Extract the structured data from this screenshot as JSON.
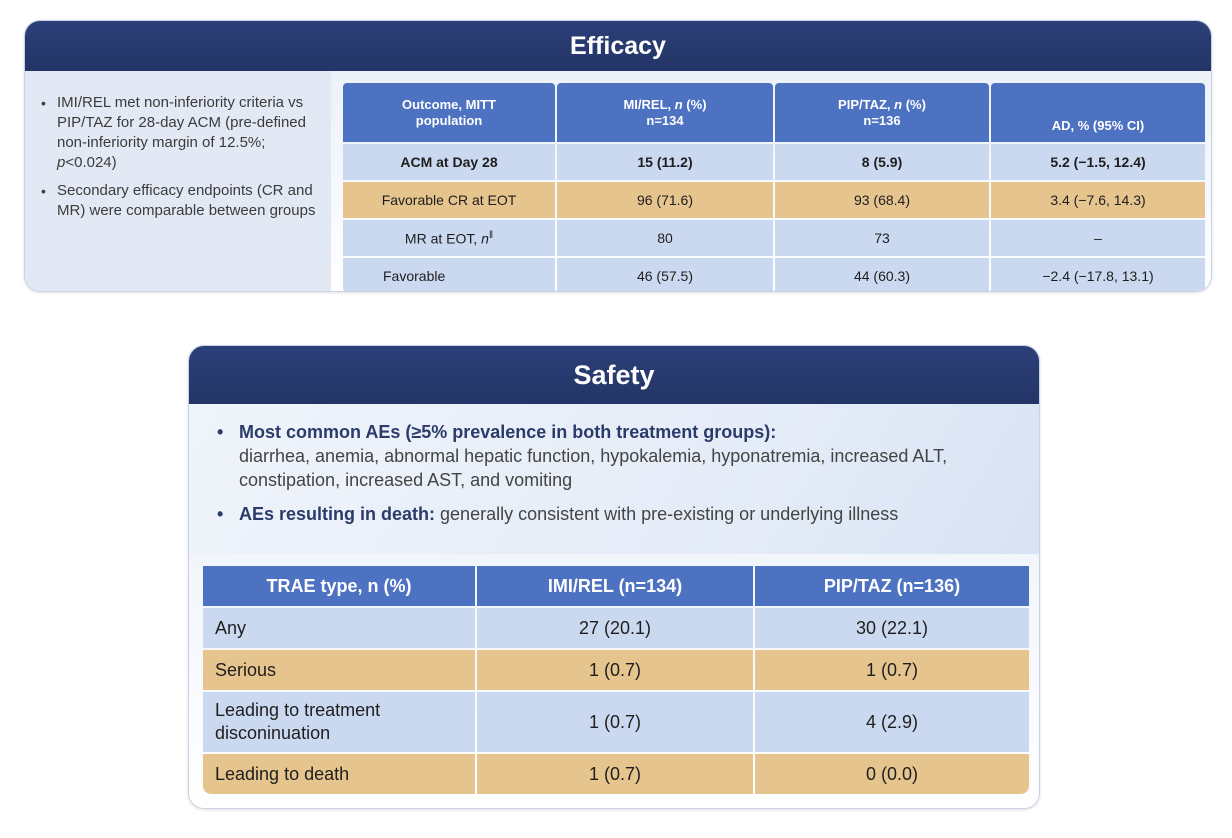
{
  "efficacy": {
    "title": "Efficacy",
    "bullets": [
      {
        "pre": "IMI/REL met non-inferiority criteria vs PIP/TAZ for 28-day ACM (pre-defined non-inferiority margin of 12.5%; ",
        "italic": "p",
        "post": "<0.024)"
      },
      {
        "pre": "Secondary efficacy endpoints (CR and MR) were comparable between groups",
        "italic": "",
        "post": ""
      }
    ],
    "headers": [
      {
        "line1": "Outcome, MITT",
        "line2": "population"
      },
      {
        "line1a": "MI/REL, ",
        "line1i": "n",
        "line1b": " (%)",
        "line2": "n=134"
      },
      {
        "line1a": "PIP/TAZ, ",
        "line1i": "n",
        "line1b": " (%)",
        "line2": "n=136"
      },
      {
        "line1": "AD, % (95% CI)"
      }
    ],
    "rows": [
      {
        "label": "ACM at Day 28",
        "c1": "15 (11.2)",
        "c2": "8 (5.9)",
        "c3": "5.2 (−1.5, 12.4)"
      },
      {
        "label": "Favorable CR at EOT",
        "c1": "96 (71.6)",
        "c2": "93 (68.4)",
        "c3": "3.4 (−7.6, 14.3)"
      },
      {
        "label_pre": "MR at EOT, ",
        "label_i": "n",
        "label_sup": "‖",
        "c1": "80",
        "c2": "73",
        "c3": "–"
      },
      {
        "label": "Favorable",
        "c1": "46 (57.5)",
        "c2": "44 (60.3)",
        "c3": "−2.4 (−17.8, 13.1)"
      }
    ]
  },
  "safety": {
    "title": "Safety",
    "bullets": [
      {
        "bold": "Most common AEs (≥5% prevalence in both treatment groups):",
        "text": "diarrhea, anemia, abnormal hepatic function, hypokalemia, hyponatremia, increased ALT, constipation, increased AST, and vomiting"
      },
      {
        "bold": "AEs resulting in death:",
        "text": " generally consistent with pre-existing or underlying illness"
      }
    ],
    "headers": [
      "TRAE type, n (%)",
      "IMI/REL (n=134)",
      "PIP/TAZ (n=136)"
    ],
    "rows": [
      {
        "label": "Any",
        "c1": "27 (20.1)",
        "c2": "30 (22.1)"
      },
      {
        "label": "Serious",
        "c1": "1 (0.7)",
        "c2": "1 (0.7)"
      },
      {
        "label_l1": "Leading to treatment",
        "label_l2": "disconinuation",
        "c1": "1 (0.7)",
        "c2": "4 (2.9)"
      },
      {
        "label": "Leading to death",
        "c1": "1 (0.7)",
        "c2": "0 (0.0)"
      }
    ]
  }
}
